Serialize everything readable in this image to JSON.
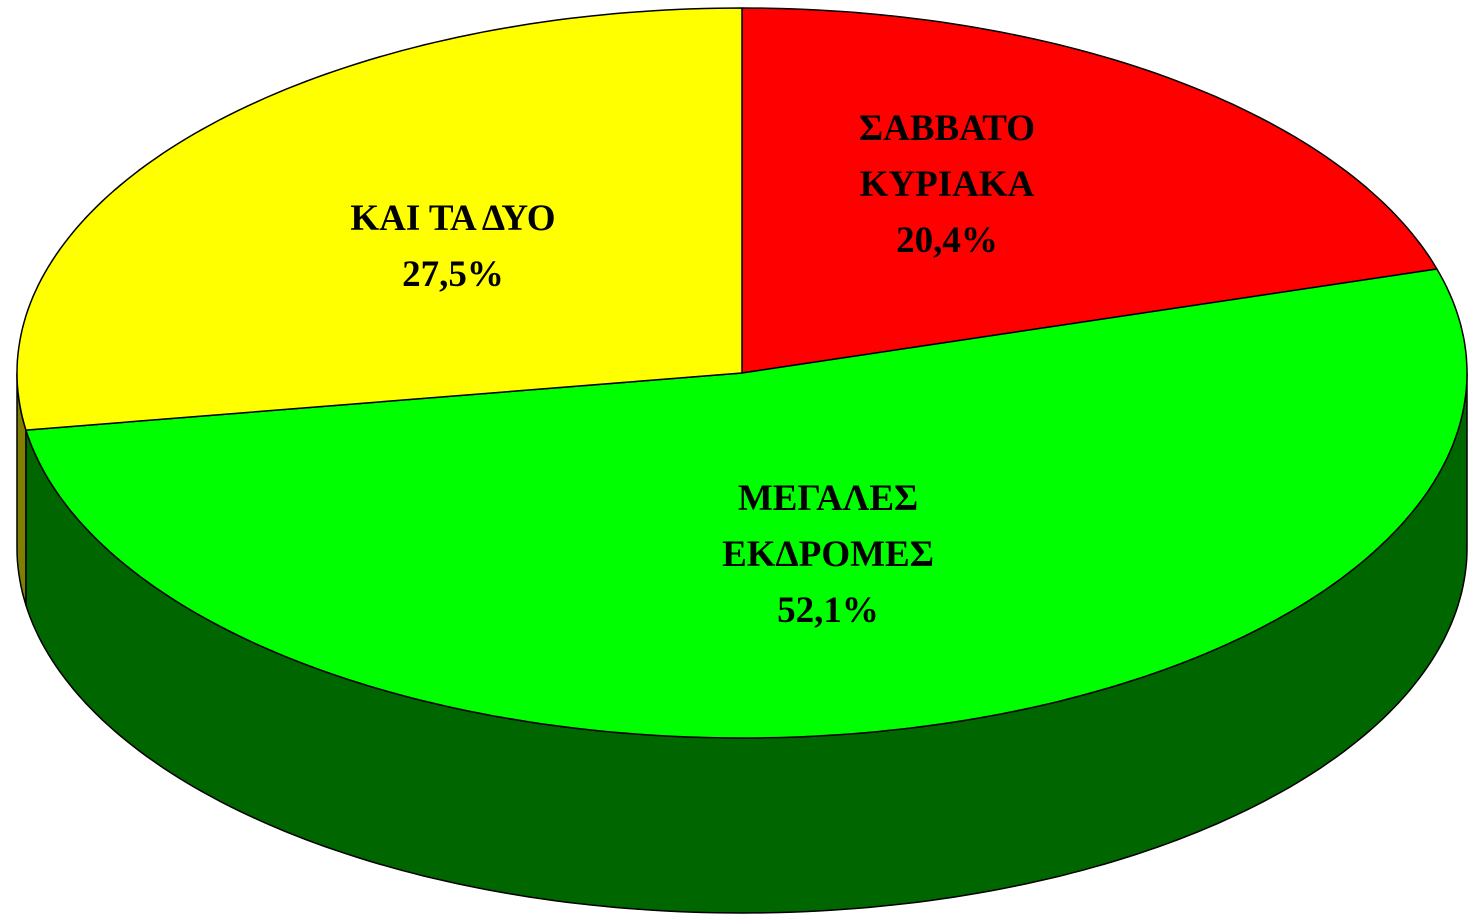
{
  "chart_data": {
    "type": "pie",
    "categories": [
      "ΣΑΒΒΑΤΟ\nΚΥΡΙΑΚΑ",
      "ΜΕΓΑΛΕΣ\nΕΚΔΡΟΜΕΣ",
      "ΚΑΙ ΤΑ ΔΥΟ"
    ],
    "values": [
      20.4,
      52.1,
      27.5
    ],
    "value_labels": [
      "20,4%",
      "52,1%",
      "27,5%"
    ],
    "colors": [
      "#ff0000",
      "#00ff00",
      "#ffff00"
    ],
    "side_colors": [
      "#800000",
      "#006600",
      "#808000"
    ]
  }
}
